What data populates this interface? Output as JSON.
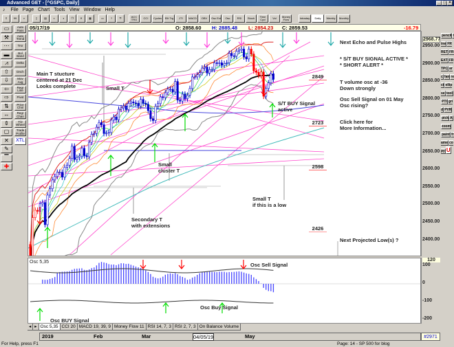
{
  "window": {
    "title": "Advanced GET - [^GSPC, Daily]"
  },
  "menu": [
    "File",
    "Page",
    "Chart",
    "Tools",
    "View",
    "Window",
    "Help"
  ],
  "toolbar": {
    "indicator_buttons": [
      "ACC TRG",
      "CCI",
      "Cycles",
      "Ellt Trg",
      "JTI",
      "MACD",
      "OBV",
      "Osc Ext",
      "Osc",
      "RSI",
      "Stoch",
      "Time Cycl",
      "Vol",
      "Money Flow"
    ],
    "period_buttons": [
      "Intraday",
      "Daily",
      "Weekly",
      "Monthly"
    ],
    "selected_period": "Daily"
  },
  "header": {
    "date": "05/17/19",
    "open": "O: 2858.60",
    "high": "H: 2885.48",
    "low": "L: 2854.23",
    "close": "C: 2859.53",
    "change": "-16.79"
  },
  "left_toolbar_2": [
    "Auto Pass",
    "Auto Trend",
    "Trsr",
    "Bol Band",
    "Delta",
    "Dnch",
    "Mov Avg",
    "Regr Line",
    "Pivot",
    "Price Chnl",
    "Regr Chan",
    "T/2 Wheel",
    "Trade Profile",
    "XTL"
  ],
  "right_toolbar": [
    "pencil",
    "line",
    "FR RET",
    "FR EXT",
    "FR TPC",
    "arc",
    "fan",
    "rect",
    "ellipse",
    "tool",
    "PTI",
    "grid",
    "PVR",
    "pick",
    "A",
    "zoom",
    "paint",
    "frame",
    "copy",
    "U"
  ],
  "price_axis": {
    "current": "2968.77",
    "labels": [
      "2950.00",
      "2900.00",
      "2850.00",
      "2800.00",
      "2750.00",
      "2700.00",
      "2650.00",
      "2600.00",
      "2550.00",
      "2500.00",
      "2450.00",
      "2400.00"
    ]
  },
  "osc_axis": {
    "current": "120",
    "labels": [
      "100",
      "0",
      "-100",
      "-200"
    ]
  },
  "annotations": {
    "main_t": [
      "Main T stucture",
      "centered at 21 Dec",
      "Looks complete"
    ],
    "small_t": "Small T",
    "small_cluster": [
      "Small",
      "cluster T"
    ],
    "secondary": [
      "Secondary  T",
      "with extensions"
    ],
    "small_t_low": [
      "Small T",
      "if this is a low"
    ],
    "st_buy": [
      "S/T BUY Signal",
      "active"
    ],
    "levels": [
      "2849",
      "2723",
      "2598",
      "2426"
    ],
    "next_low": "Next Projected Low(s) ?"
  },
  "side_info": {
    "echo": "Next Echo and Pulse Highs",
    "buy": "* S/T BUY SIGNAL ACTIVE *",
    "alert": "* SHORT ALERT *",
    "vol1": "T volume osc at -36",
    "vol2": "Down strongly",
    "osc1": "Osc Sell Signal on 01 May",
    "osc2": "Osc rising?",
    "more1": "Click here for",
    "more2": "More Information..."
  },
  "osc_panel": {
    "title": "Osc 5,35",
    "sell": "Osc Sell Signal",
    "buy": "Osc Buy Signal",
    "buy_big": "Osc BUY Signal"
  },
  "tabs": [
    "Osc 5,35",
    "CCI 20",
    "MACD 19, 39, 9",
    "Money Flow 11",
    "RSI 14, 7, 3",
    "RSI 2, 7, 3",
    "On Balance Volume"
  ],
  "date_axis": {
    "labels": [
      "2019",
      "Feb",
      "Mar",
      "04/05/19",
      "May"
    ],
    "bar_count": "#2971"
  },
  "status": {
    "help": "For Help, press F1",
    "page": "Page: 14 - SP 500 for blog"
  },
  "colors": {
    "candle": "#0000cc",
    "down_candle": "#ff0000",
    "ma": "#000000",
    "trend": "#ff44cc",
    "buy_arrow": "#00dd00",
    "sell_arrow": "#ff0000",
    "histogram": "#4444ff"
  },
  "price_series": {
    "start": "12/24/18",
    "end": "05/17/19",
    "closes": [
      2351,
      2467,
      2488,
      2485,
      2506,
      2510,
      2447,
      2531,
      2549,
      2574,
      2584,
      2596,
      2596,
      2582,
      2610,
      2616,
      2635,
      2670,
      2632,
      2638,
      2642,
      2664,
      2643,
      2640,
      2681,
      2704,
      2706,
      2724,
      2737,
      2731,
      2706,
      2707,
      2709,
      2744,
      2753,
      2745,
      2775,
      2779,
      2784,
      2774,
      2792,
      2796,
      2793,
      2792,
      2784,
      2803,
      2792,
      2789,
      2771,
      2748,
      2743,
      2783,
      2791,
      2810,
      2808,
      2822,
      2832,
      2832,
      2824,
      2854,
      2801,
      2798,
      2818,
      2805,
      2815,
      2834,
      2867,
      2867,
      2873,
      2879,
      2892,
      2895,
      2878,
      2888,
      2888,
      2907,
      2905,
      2907,
      2900,
      2905,
      2907,
      2934,
      2927,
      2926,
      2940,
      2943,
      2946,
      2924,
      2918,
      2946,
      2932,
      2884,
      2880,
      2871,
      2881,
      2812,
      2834,
      2850,
      2876,
      2860
    ]
  }
}
